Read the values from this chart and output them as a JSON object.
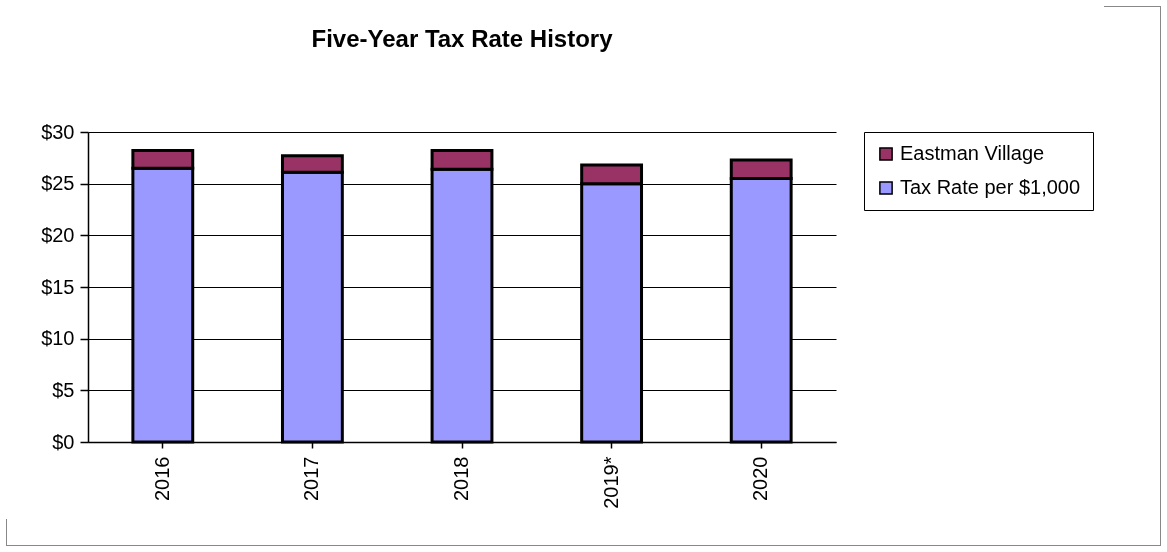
{
  "chart_data": {
    "type": "bar",
    "title": "Five-Year Tax Rate History",
    "categories": [
      "2016",
      "2017",
      "2018",
      "2019*",
      "2020"
    ],
    "stacked": true,
    "series": [
      {
        "name": "Tax Rate per $1,000",
        "color": "#9999ff",
        "values": [
          26.5,
          26.1,
          26.4,
          25.0,
          25.5
        ]
      },
      {
        "name": "Eastman Village",
        "color": "#993366",
        "values": [
          1.7,
          1.6,
          1.8,
          1.8,
          1.8
        ]
      }
    ],
    "ylim": [
      0,
      30
    ],
    "yticks": [
      {
        "value": 0,
        "label": "$0"
      },
      {
        "value": 5,
        "label": "$5"
      },
      {
        "value": 10,
        "label": "$10"
      },
      {
        "value": 15,
        "label": "$15"
      },
      {
        "value": 20,
        "label": "$20"
      },
      {
        "value": 25,
        "label": "$25"
      },
      {
        "value": 30,
        "label": "$30"
      }
    ],
    "grid": "y",
    "legend": "right"
  }
}
